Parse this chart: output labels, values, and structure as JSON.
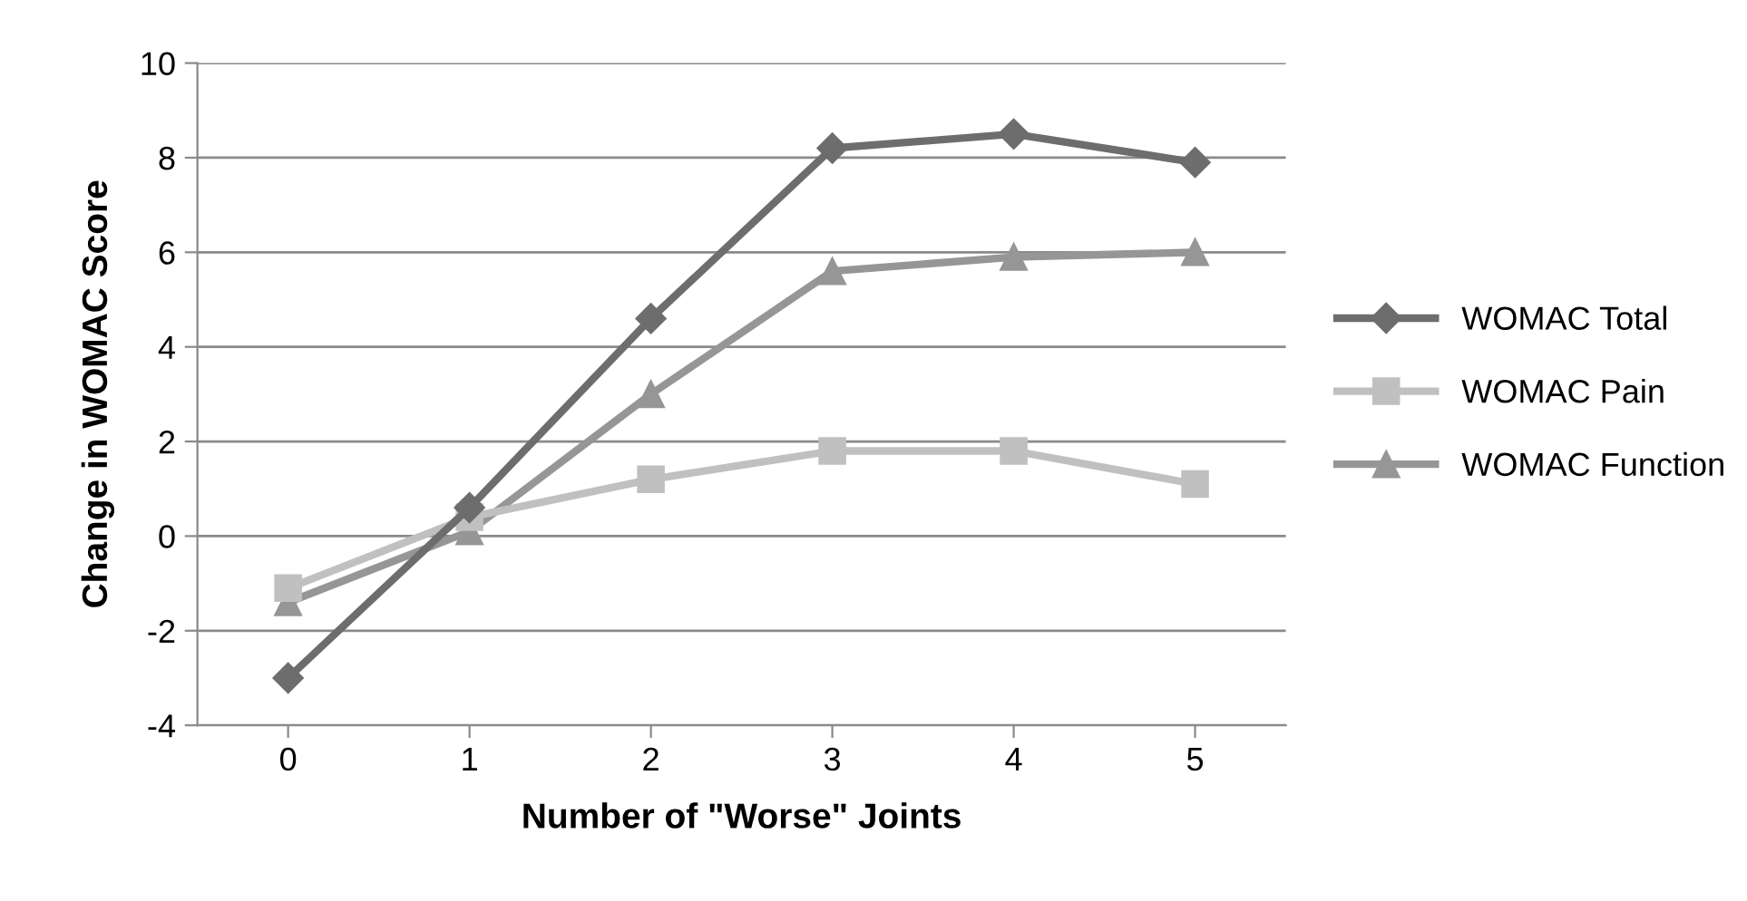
{
  "chart_data": {
    "type": "line",
    "xlabel": "Number of \"Worse\" Joints",
    "ylabel": "Change in WOMAC Score",
    "categories": [
      "0",
      "1",
      "2",
      "3",
      "4",
      "5"
    ],
    "series": [
      {
        "name": "WOMAC Total",
        "color": "#6d6d6d",
        "marker": "diamond",
        "values": [
          -3.0,
          0.6,
          4.6,
          8.2,
          8.5,
          7.9
        ]
      },
      {
        "name": "WOMAC Pain",
        "color": "#c0c0c0",
        "marker": "square",
        "values": [
          -1.1,
          0.4,
          1.2,
          1.8,
          1.8,
          1.1
        ]
      },
      {
        "name": "WOMAC Function",
        "color": "#969696",
        "marker": "triangle",
        "values": [
          -1.4,
          0.1,
          3.0,
          5.6,
          5.9,
          6.0
        ]
      }
    ],
    "ylim": [
      -4,
      10
    ],
    "yticks": [
      -4,
      -2,
      0,
      2,
      4,
      6,
      8,
      10
    ],
    "grid": "y",
    "legend": "right",
    "line_style": "solid"
  }
}
